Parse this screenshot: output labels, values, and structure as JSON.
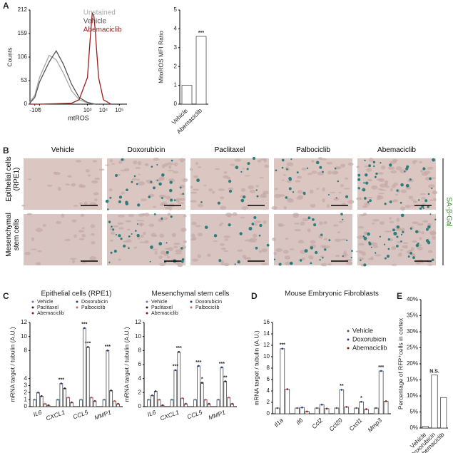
{
  "panel_labels": [
    "A",
    "B",
    "C",
    "D",
    "E"
  ],
  "images": {
    "columns": [
      "Vehicle",
      "Doxorubicin",
      "Paclitaxel",
      "Palbociclib",
      "Abemaciclib"
    ],
    "rows": [
      "Epithelial cells (RPE1)",
      "Mesenchymal stem cells"
    ],
    "stain": "SA-β-Gal"
  },
  "chart_data": [
    {
      "type": "line",
      "ylabel": "Counts",
      "xlabel": "mtROS",
      "xscale": "symlog",
      "legend": "top-right",
      "xlim": [
        -3,
        300000
      ],
      "ylim": [
        0,
        212
      ],
      "yticks": [
        0,
        53,
        106,
        159,
        212
      ],
      "xticks": [
        {
          "value": -1,
          "label": "-10⁰"
        },
        0,
        {
          "value": 1000,
          "label": "10³"
        },
        {
          "value": 10000,
          "label": "10⁴"
        },
        {
          "value": 100000,
          "label": "10⁵"
        }
      ],
      "series": [
        {
          "name": "Unstained",
          "color": "#a8a8a8",
          "x": [
            -3,
            -1,
            0,
            3,
            10,
            30,
            100,
            300,
            1000,
            3000
          ],
          "values": [
            5,
            20,
            60,
            110,
            100,
            70,
            30,
            10,
            3,
            0
          ]
        },
        {
          "name": "Vehicle",
          "color": "#555555",
          "x": [
            -3,
            -1,
            0,
            3,
            10,
            30,
            100,
            300,
            1000,
            3000
          ],
          "values": [
            3,
            15,
            50,
            95,
            120,
            90,
            45,
            15,
            4,
            0
          ]
        },
        {
          "name": "Abemaciclib",
          "color": "#9b1c1c",
          "x": [
            -3,
            0,
            100,
            300,
            1000,
            1500,
            2000,
            2500,
            3000,
            5000,
            10000,
            30000
          ],
          "values": [
            0,
            0,
            2,
            10,
            60,
            150,
            205,
            200,
            170,
            60,
            10,
            0
          ]
        }
      ]
    },
    {
      "type": "bar",
      "ylabel": "MitoROS MFI Ratio",
      "categories": [
        "Vehicle",
        "Abemaciclib"
      ],
      "values": [
        1,
        3.6
      ],
      "color": "#ffffff",
      "ylim": [
        0,
        5
      ],
      "yticks": [
        0,
        1,
        2,
        3,
        4,
        5
      ],
      "annotations": [
        {
          "text": "***",
          "category": "Abemaciclib"
        }
      ]
    },
    {
      "type": "bar",
      "title": "Epithelial cells (RPE1)",
      "ylabel": "mRNA target / tubulin (A.U.)",
      "legend": "top",
      "categories": [
        "IL6",
        "CXCL1",
        "CCL5",
        "MMP1"
      ],
      "ylim": [
        0,
        12
      ],
      "yticks": [
        0,
        1,
        2,
        3,
        4,
        8,
        10,
        12
      ],
      "series": [
        {
          "name": "Vehicle",
          "color": "#5a7fa8",
          "values": [
            1,
            1,
            1,
            1
          ]
        },
        {
          "name": "Doxorubicin",
          "color": "#1f3f99",
          "values": [
            2.0,
            3.3,
            11.2,
            8.0
          ]
        },
        {
          "name": "Paclitaxel",
          "color": "#222222",
          "values": [
            1.5,
            2.6,
            8.5,
            2.3
          ]
        },
        {
          "name": "Palbociclib",
          "color": "#d35f5f",
          "values": [
            0.4,
            1.3,
            1.3,
            0.8
          ]
        },
        {
          "name": "Abemaciclib",
          "color": "#8b1a1a",
          "values": [
            0.2,
            0.6,
            0.8,
            0.4
          ]
        }
      ],
      "annotations": [
        {
          "text": "***",
          "category": "CXCL1",
          "series": "Doxorubicin"
        },
        {
          "text": "***",
          "category": "CCL5",
          "series": "Doxorubicin"
        },
        {
          "text": "***",
          "category": "CCL5",
          "series": "Paclitaxel"
        },
        {
          "text": "***",
          "category": "MMP1",
          "series": "Doxorubicin"
        }
      ]
    },
    {
      "type": "bar",
      "title": "Mesenchymal stem cells",
      "ylabel": "mRNA target / tubulin (A.U.)",
      "legend": "top",
      "categories": [
        "IL6",
        "CXCL1",
        "CCL5",
        "MMP1"
      ],
      "ylim": [
        0,
        12
      ],
      "yticks": [
        0,
        2,
        4,
        6,
        8,
        10,
        12
      ],
      "series": [
        {
          "name": "Vehicle",
          "color": "#5a7fa8",
          "values": [
            1,
            1,
            1,
            1
          ]
        },
        {
          "name": "Doxorubicin",
          "color": "#1f3f99",
          "values": [
            1.6,
            5.2,
            5.8,
            5.6
          ]
        },
        {
          "name": "Paclitaxel",
          "color": "#222222",
          "values": [
            2.2,
            7.8,
            3.4,
            3.6
          ]
        },
        {
          "name": "Palbociclib",
          "color": "#d35f5f",
          "values": [
            1.0,
            1.2,
            1.0,
            1.3
          ]
        },
        {
          "name": "Abemaciclib",
          "color": "#8b1a1a",
          "values": [
            0.2,
            0.4,
            0.4,
            0.4
          ]
        }
      ],
      "annotations": [
        {
          "text": "***",
          "category": "CXCL1",
          "series": "Doxorubicin"
        },
        {
          "text": "***",
          "category": "CXCL1",
          "series": "Paclitaxel"
        },
        {
          "text": "***",
          "category": "CCL5",
          "series": "Doxorubicin"
        },
        {
          "text": "*",
          "category": "CCL5",
          "series": "Paclitaxel"
        },
        {
          "text": "***",
          "category": "MMP1",
          "series": "Doxorubicin"
        },
        {
          "text": "**",
          "category": "MMP1",
          "series": "Paclitaxel"
        }
      ]
    },
    {
      "type": "bar",
      "title": "Mouse Embryonic Fibroblasts",
      "ylabel": "mRNA target / tubulin (A.U.)",
      "legend": "top-right",
      "categories": [
        "Il1a",
        "Il6",
        "Ccl2",
        "Ccl20",
        "Cxcl1",
        "Mmp3"
      ],
      "ylim": [
        0,
        16
      ],
      "yticks": [
        0,
        2,
        4,
        6,
        8,
        10,
        12,
        14,
        16
      ],
      "series": [
        {
          "name": "Vehicle",
          "color": "#555555",
          "values": [
            1,
            1,
            1,
            1,
            1,
            1
          ]
        },
        {
          "name": "Doxorubicin",
          "color": "#1f3f99",
          "values": [
            11.4,
            1.1,
            1.6,
            4.2,
            2.1,
            7.5
          ]
        },
        {
          "name": "Abemaciclib",
          "color": "#8b1a1a",
          "values": [
            4.3,
            0.4,
            0.9,
            1.2,
            0.8,
            2.2
          ]
        }
      ],
      "annotations": [
        {
          "text": "***",
          "category": "Il1a",
          "series": "Doxorubicin"
        },
        {
          "text": "**",
          "category": "Ccl20",
          "series": "Doxorubicin"
        },
        {
          "text": "*",
          "category": "Cxcl1",
          "series": "Doxorubicin"
        },
        {
          "text": "***",
          "category": "Mmp3",
          "series": "Doxorubicin"
        }
      ]
    },
    {
      "type": "bar",
      "ylabel": "Percentage of RFP⁺cells in cortex",
      "categories": [
        "Vehicle",
        "Doxorubicin",
        "Abemaciclib"
      ],
      "values": [
        0.5,
        16.5,
        9.5
      ],
      "color": "#ffffff",
      "ylim": [
        0,
        40
      ],
      "yticks": [
        {
          "value": 0,
          "label": "0%"
        },
        {
          "value": 5,
          "label": "5%"
        },
        {
          "value": 10,
          "label": "10%"
        },
        {
          "value": 15,
          "label": "15%"
        },
        {
          "value": 20,
          "label": "20%"
        },
        {
          "value": 25,
          "label": "25%"
        },
        {
          "value": 30,
          "label": "30%"
        },
        {
          "value": 35,
          "label": "35%"
        },
        {
          "value": 40,
          "label": "40%"
        }
      ],
      "annotations": [
        {
          "text": "N.S.",
          "category": "Doxorubicin"
        }
      ]
    }
  ]
}
